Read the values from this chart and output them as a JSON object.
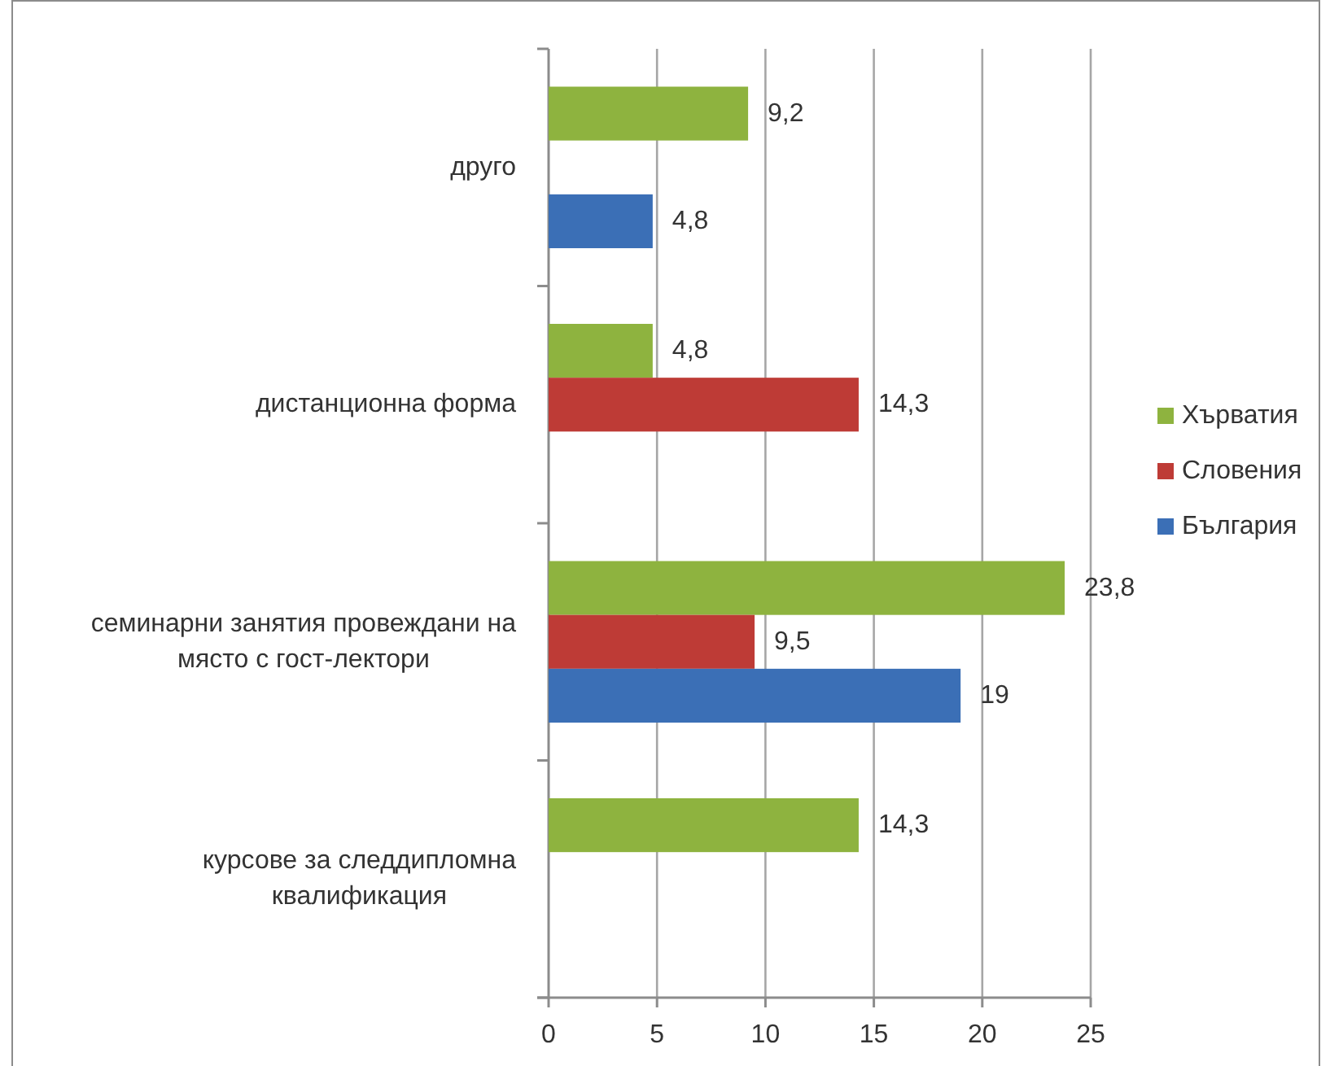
{
  "chart_data": {
    "type": "bar",
    "orientation": "horizontal",
    "categories": [
      "друго",
      "дистанционна форма",
      "семинарни занятия провеждани на място с гост-лектори",
      "курсове за следдипломна квалификация"
    ],
    "series": [
      {
        "name": "Хърватия",
        "color": "#8eb33f",
        "values": [
          9.2,
          4.8,
          23.8,
          14.3
        ],
        "value_labels": [
          "9,2",
          "4,8",
          "23,8",
          "14,3"
        ]
      },
      {
        "name": "Словения",
        "color": "#be3b36",
        "values": [
          null,
          14.3,
          9.5,
          null
        ],
        "value_labels": [
          null,
          "14,3",
          "9,5",
          null
        ]
      },
      {
        "name": "България",
        "color": "#3b6fb6",
        "values": [
          4.8,
          null,
          19,
          null
        ],
        "value_labels": [
          "4,8",
          null,
          "19",
          null
        ]
      }
    ],
    "xlim": [
      0,
      25
    ],
    "xticks": [
      0,
      5,
      10,
      15,
      20,
      25
    ],
    "grid": "x",
    "legend": "right"
  }
}
